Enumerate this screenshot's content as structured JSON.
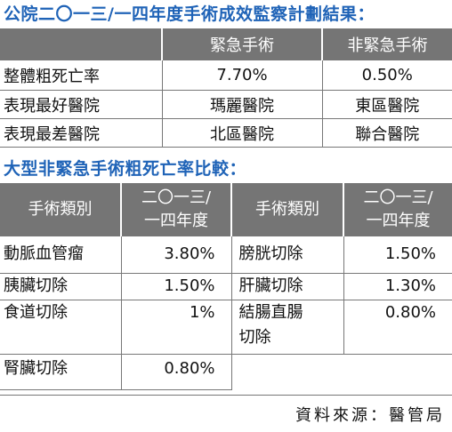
{
  "title1": "公院二〇一三/一四年度手術成效監察計劃結果：",
  "table1": {
    "headers": [
      "",
      "緊急手術",
      "非緊急手術"
    ],
    "rows": [
      {
        "label": "整體粗死亡率",
        "emergency": "7.70%",
        "non_emergency": "0.50%"
      },
      {
        "label": "表現最好醫院",
        "emergency": "瑪麗醫院",
        "non_emergency": "東區醫院"
      },
      {
        "label": "表現最差醫院",
        "emergency": "北區醫院",
        "non_emergency": "聯合醫院"
      }
    ]
  },
  "title2": "大型非緊急手術粗死亡率比較：",
  "table2": {
    "header_type": "手術類別",
    "header_year_line1": "二〇一三/",
    "header_year_line2": "一四年度",
    "rows": [
      {
        "left_label": "動脈血管瘤",
        "left_value": "3.80%",
        "right_label": "膀胱切除",
        "right_value": "1.50%"
      },
      {
        "left_label": "胰臟切除",
        "left_value": "1.50%",
        "right_label": "肝臟切除",
        "right_value": "1.30%"
      },
      {
        "left_label": "食道切除",
        "left_value": "1%",
        "right_label_line1": "結腸直腸",
        "right_label_line2": "切除",
        "right_value": "0.80%"
      },
      {
        "left_label": "腎臟切除",
        "left_value": "0.80%"
      }
    ]
  },
  "source": "資料來源：醫管局",
  "colors": {
    "title": "#1f63b7",
    "header_bg": "#757575"
  }
}
